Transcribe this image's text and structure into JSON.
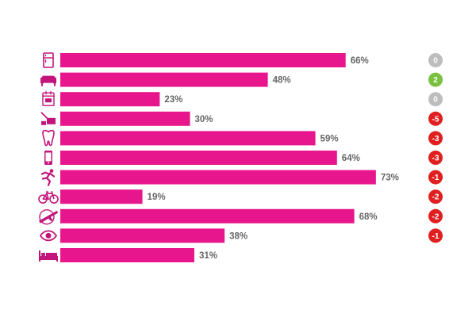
{
  "chart_data": {
    "type": "bar",
    "orientation": "horizontal",
    "categories": [
      "fridge-icon",
      "armchair-icon",
      "calendar-icon",
      "cleaning-icon",
      "tooth-icon",
      "phone-icon",
      "running-icon",
      "bicycle-icon",
      "plane-icon",
      "eye-icon",
      "bed-icon"
    ],
    "values": [
      66,
      48,
      23,
      30,
      59,
      64,
      73,
      19,
      68,
      38,
      31
    ],
    "value_labels": [
      "66%",
      "48%",
      "23%",
      "30%",
      "59%",
      "64%",
      "73%",
      "19%",
      "68%",
      "38%",
      "31%"
    ],
    "change_labels": [
      "0",
      "2",
      "0",
      "-5",
      "-3",
      "-3",
      "-1",
      "-2",
      "-2",
      "-1",
      ""
    ],
    "change_values": [
      0,
      2,
      0,
      -5,
      -3,
      -3,
      -1,
      -2,
      -2,
      -1,
      null
    ],
    "xlim": [
      0,
      100
    ],
    "grid": false,
    "bar_color": "#e8168c",
    "icon_color": "#c2147a",
    "badge_colors": {
      "zero": "#bdbdbd",
      "positive": "#7ac142",
      "negative": "#e02020"
    },
    "label_color": "#666666"
  }
}
